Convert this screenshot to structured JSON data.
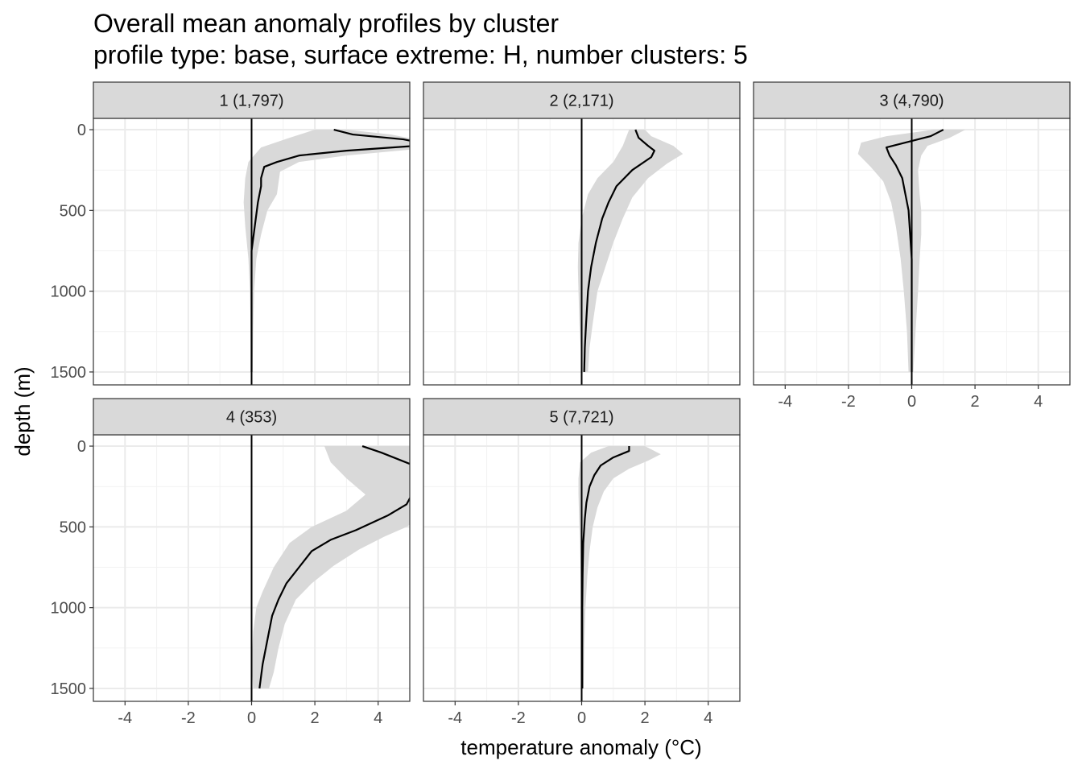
{
  "chart_data": {
    "type": "line",
    "title": "Overall mean anomaly profiles by cluster",
    "subtitle": "profile type: base, surface extreme: H, number clusters: 5",
    "xlabel": "temperature anomaly (°C)",
    "ylabel": "depth (m)",
    "xlim": [
      -5,
      5
    ],
    "ylim": [
      1580,
      -70
    ],
    "y_reversed": true,
    "x_ticks": [
      -4,
      -2,
      0,
      2,
      4
    ],
    "x_tick_labels": [
      "-4",
      "-2",
      "0",
      "2",
      "4"
    ],
    "y_ticks": [
      0,
      500,
      1000,
      1500
    ],
    "y_tick_labels": [
      "0",
      "500",
      "1000",
      "1500"
    ],
    "grid": true,
    "zero_line": true,
    "band_color": "#d9d9d9",
    "line_color": "#000000",
    "strip_color": "#d9d9d9",
    "panels": [
      {
        "label": "1 (1,797)",
        "mean": [
          [
            2.6,
            0
          ],
          [
            3.2,
            30
          ],
          [
            4.8,
            60
          ],
          [
            5.2,
            75
          ],
          [
            5.2,
            100
          ],
          [
            3.0,
            130
          ],
          [
            1.5,
            160
          ],
          [
            0.8,
            200
          ],
          [
            0.4,
            230
          ],
          [
            0.3,
            300
          ],
          [
            0.3,
            350
          ],
          [
            0.2,
            450
          ],
          [
            0.1,
            600
          ],
          [
            0.0,
            750
          ],
          [
            0.0,
            1000
          ],
          [
            0.0,
            1250
          ],
          [
            0.0,
            1500
          ]
        ],
        "band_low": [
          [
            2.0,
            0
          ],
          [
            1.2,
            50
          ],
          [
            0.3,
            110
          ],
          [
            -0.1,
            200
          ],
          [
            -0.2,
            300
          ],
          [
            -0.25,
            450
          ],
          [
            -0.2,
            600
          ],
          [
            -0.1,
            800
          ],
          [
            -0.05,
            1000
          ],
          [
            -0.03,
            1250
          ],
          [
            -0.02,
            1500
          ]
        ],
        "band_high": [
          [
            3.0,
            0
          ],
          [
            4.4,
            30
          ],
          [
            5.2,
            60
          ],
          [
            5.2,
            120
          ],
          [
            3.0,
            160
          ],
          [
            1.5,
            200
          ],
          [
            0.9,
            260
          ],
          [
            0.8,
            400
          ],
          [
            0.5,
            500
          ],
          [
            0.3,
            650
          ],
          [
            0.15,
            800
          ],
          [
            0.08,
            1000
          ],
          [
            0.05,
            1250
          ],
          [
            0.03,
            1500
          ]
        ]
      },
      {
        "label": "2 (2,171)",
        "mean": [
          [
            1.7,
            0
          ],
          [
            1.8,
            50
          ],
          [
            2.1,
            100
          ],
          [
            2.3,
            130
          ],
          [
            2.2,
            170
          ],
          [
            1.6,
            250
          ],
          [
            1.1,
            350
          ],
          [
            0.85,
            450
          ],
          [
            0.65,
            550
          ],
          [
            0.45,
            700
          ],
          [
            0.3,
            850
          ],
          [
            0.2,
            1000
          ],
          [
            0.14,
            1200
          ],
          [
            0.1,
            1350
          ],
          [
            0.08,
            1500
          ]
        ],
        "band_low": [
          [
            1.5,
            0
          ],
          [
            1.3,
            100
          ],
          [
            1.0,
            200
          ],
          [
            0.5,
            300
          ],
          [
            0.2,
            400
          ],
          [
            0.0,
            550
          ],
          [
            -0.1,
            700
          ],
          [
            -0.12,
            850
          ],
          [
            -0.1,
            1000
          ],
          [
            -0.07,
            1200
          ],
          [
            -0.03,
            1350
          ],
          [
            0.0,
            1500
          ]
        ],
        "band_high": [
          [
            2.0,
            0
          ],
          [
            2.2,
            40
          ],
          [
            2.9,
            100
          ],
          [
            3.2,
            150
          ],
          [
            2.7,
            210
          ],
          [
            2.1,
            300
          ],
          [
            1.6,
            420
          ],
          [
            1.3,
            550
          ],
          [
            1.0,
            700
          ],
          [
            0.75,
            850
          ],
          [
            0.5,
            1000
          ],
          [
            0.35,
            1200
          ],
          [
            0.25,
            1350
          ],
          [
            0.2,
            1500
          ]
        ]
      },
      {
        "label": "3 (4,790)",
        "mean": [
          [
            1.0,
            0
          ],
          [
            0.6,
            40
          ],
          [
            -0.2,
            80
          ],
          [
            -0.8,
            110
          ],
          [
            -0.7,
            160
          ],
          [
            -0.5,
            220
          ],
          [
            -0.3,
            300
          ],
          [
            -0.2,
            400
          ],
          [
            -0.1,
            500
          ],
          [
            -0.05,
            650
          ],
          [
            0.0,
            800
          ],
          [
            0.0,
            1000
          ],
          [
            0.0,
            1250
          ],
          [
            0.0,
            1500
          ]
        ],
        "band_low": [
          [
            0.7,
            0
          ],
          [
            -0.8,
            40
          ],
          [
            -1.6,
            80
          ],
          [
            -1.7,
            150
          ],
          [
            -1.3,
            230
          ],
          [
            -0.9,
            320
          ],
          [
            -0.65,
            450
          ],
          [
            -0.5,
            600
          ],
          [
            -0.35,
            800
          ],
          [
            -0.25,
            1000
          ],
          [
            -0.15,
            1250
          ],
          [
            -0.1,
            1500
          ]
        ],
        "band_high": [
          [
            1.7,
            0
          ],
          [
            1.2,
            50
          ],
          [
            0.5,
            100
          ],
          [
            0.3,
            160
          ],
          [
            0.2,
            250
          ],
          [
            0.25,
            400
          ],
          [
            0.3,
            500
          ],
          [
            0.3,
            650
          ],
          [
            0.25,
            800
          ],
          [
            0.2,
            1000
          ],
          [
            0.12,
            1250
          ],
          [
            0.05,
            1500
          ]
        ]
      },
      {
        "label": "4 (353)",
        "mean": [
          [
            3.5,
            0
          ],
          [
            4.1,
            40
          ],
          [
            5.0,
            110
          ],
          [
            5.2,
            130
          ],
          [
            5.2,
            250
          ],
          [
            4.9,
            360
          ],
          [
            4.3,
            430
          ],
          [
            3.3,
            520
          ],
          [
            2.5,
            580
          ],
          [
            1.9,
            650
          ],
          [
            1.5,
            750
          ],
          [
            1.1,
            850
          ],
          [
            0.85,
            950
          ],
          [
            0.65,
            1050
          ],
          [
            0.5,
            1200
          ],
          [
            0.35,
            1350
          ],
          [
            0.25,
            1500
          ]
        ],
        "band_low": [
          [
            2.3,
            0
          ],
          [
            2.5,
            100
          ],
          [
            3.0,
            200
          ],
          [
            3.6,
            300
          ],
          [
            3.0,
            400
          ],
          [
            1.9,
            500
          ],
          [
            1.2,
            600
          ],
          [
            0.7,
            750
          ],
          [
            0.35,
            900
          ],
          [
            0.15,
            1000
          ],
          [
            0.05,
            1150
          ],
          [
            0.0,
            1350
          ],
          [
            0.05,
            1500
          ]
        ],
        "band_high": [
          [
            5.2,
            0
          ],
          [
            5.2,
            460
          ],
          [
            4.9,
            500
          ],
          [
            4.2,
            560
          ],
          [
            3.4,
            640
          ],
          [
            2.6,
            740
          ],
          [
            1.9,
            850
          ],
          [
            1.4,
            950
          ],
          [
            1.05,
            1100
          ],
          [
            0.85,
            1250
          ],
          [
            0.7,
            1400
          ],
          [
            0.55,
            1500
          ]
        ]
      },
      {
        "label": "5 (7,721)",
        "mean": [
          [
            1.5,
            0
          ],
          [
            1.5,
            30
          ],
          [
            1.0,
            70
          ],
          [
            0.6,
            120
          ],
          [
            0.4,
            180
          ],
          [
            0.25,
            250
          ],
          [
            0.15,
            350
          ],
          [
            0.1,
            450
          ],
          [
            0.05,
            600
          ],
          [
            0.03,
            800
          ],
          [
            0.02,
            1000
          ],
          [
            0.02,
            1250
          ],
          [
            0.02,
            1500
          ]
        ],
        "band_low": [
          [
            0.85,
            0
          ],
          [
            0.3,
            40
          ],
          [
            -0.05,
            100
          ],
          [
            -0.1,
            200
          ],
          [
            -0.1,
            300
          ],
          [
            -0.08,
            450
          ],
          [
            -0.05,
            600
          ],
          [
            -0.03,
            800
          ],
          [
            -0.02,
            1000
          ],
          [
            -0.01,
            1250
          ],
          [
            0.0,
            1500
          ]
        ],
        "band_high": [
          [
            2.0,
            0
          ],
          [
            2.5,
            50
          ],
          [
            2.1,
            90
          ],
          [
            1.5,
            140
          ],
          [
            1.0,
            200
          ],
          [
            0.7,
            280
          ],
          [
            0.5,
            380
          ],
          [
            0.35,
            500
          ],
          [
            0.25,
            650
          ],
          [
            0.18,
            800
          ],
          [
            0.12,
            1000
          ],
          [
            0.08,
            1250
          ],
          [
            0.06,
            1500
          ]
        ]
      }
    ]
  }
}
